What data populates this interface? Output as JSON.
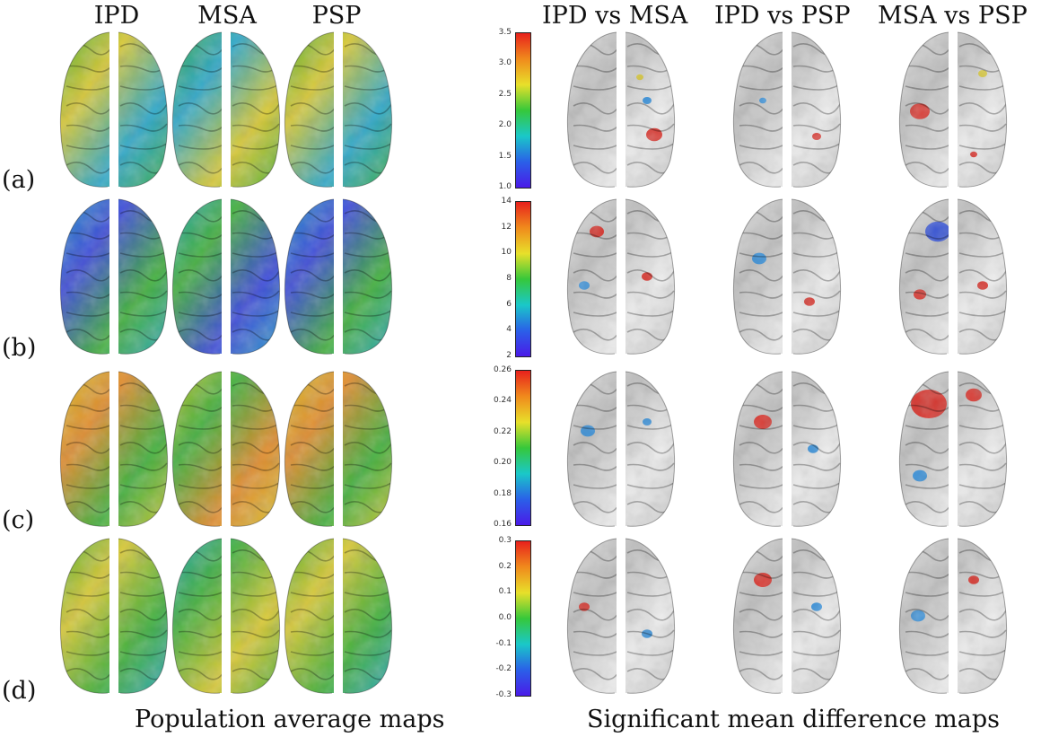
{
  "column_titles": {
    "ipd": "IPD",
    "msa": "MSA",
    "psp": "PSP",
    "ipd_vs_msa": "IPD vs MSA",
    "ipd_vs_psp": "IPD vs PSP",
    "msa_vs_psp": "MSA vs PSP"
  },
  "row_labels": [
    "(a)",
    "(b)",
    "(c)",
    "(d)"
  ],
  "captions": {
    "left": "Population average maps",
    "right": "Significant mean difference maps"
  },
  "colorbars": [
    {
      "ticks": [
        "3.5",
        "3.0",
        "2.5",
        "2.0",
        "1.5",
        "1.0"
      ]
    },
    {
      "ticks": [
        "14",
        "12",
        "10",
        "8",
        "6",
        "4",
        "2"
      ]
    },
    {
      "ticks": [
        "0.26",
        "0.24",
        "0.22",
        "0.20",
        "0.18",
        "0.16"
      ]
    },
    {
      "ticks": [
        "0.3",
        "0.2",
        "0.1",
        "0.0",
        "-0.1",
        "-0.2",
        "-0.3"
      ]
    }
  ],
  "colors": {
    "surface_gray": "#d9d9d9",
    "map_green": "#3fae3a",
    "map_blue": "#3a48d8",
    "map_red": "#d8261e",
    "map_yellow": "#d8c832"
  }
}
